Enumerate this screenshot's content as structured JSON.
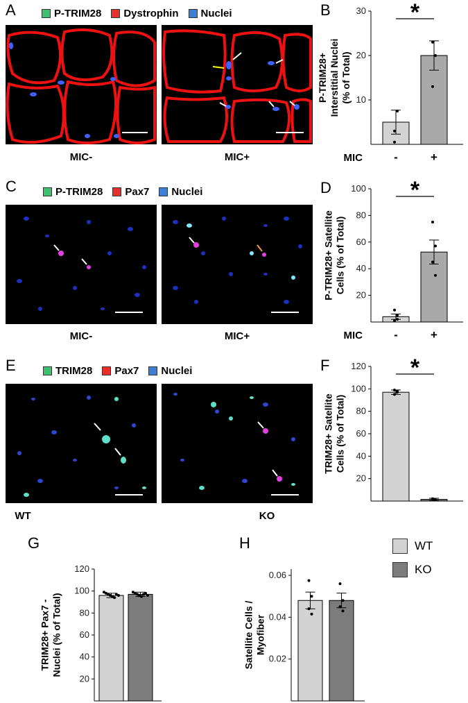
{
  "panels": {
    "A": {
      "letter": "A",
      "legend": [
        {
          "label": "P-TRIM28",
          "color": "#3ec16e"
        },
        {
          "label": "Dystrophin",
          "color": "#e8302a"
        },
        {
          "label": "Nuclei",
          "color": "#3d7fd6"
        }
      ],
      "captions": [
        "MIC-",
        "MIC+"
      ]
    },
    "C": {
      "letter": "C",
      "legend": [
        {
          "label": "P-TRIM28",
          "color": "#3ec16e"
        },
        {
          "label": "Pax7",
          "color": "#e8302a"
        },
        {
          "label": "Nuclei",
          "color": "#3d7fd6"
        }
      ],
      "captions": [
        "MIC-",
        "MIC+"
      ]
    },
    "E": {
      "letter": "E",
      "legend": [
        {
          "label": "TRIM28",
          "color": "#3ec16e"
        },
        {
          "label": "Pax7",
          "color": "#e8302a"
        },
        {
          "label": "Nuclei",
          "color": "#3d7fd6"
        }
      ],
      "captions": [
        "WT",
        "KO"
      ]
    }
  },
  "legend_gh": {
    "wt": "WT",
    "ko": "KO",
    "wt_color": "#d3d3d3",
    "ko_color": "#7c7c7c"
  },
  "chart_data": [
    {
      "panel": "B",
      "letter": "B",
      "type": "bar",
      "ylabel": "P-TRIM28+\nInterstitial Nuclei\n(% of Total)",
      "categories": [
        "-",
        "+"
      ],
      "xgroup_label": "MIC",
      "values": [
        5,
        20
      ],
      "errors": [
        2.7,
        3.3
      ],
      "points": [
        [
          3,
          7.5,
          0.5
        ],
        [
          23,
          20,
          13
        ]
      ],
      "yticks": [
        10,
        20,
        30
      ],
      "ylim": [
        0,
        30
      ],
      "significance": "*",
      "colors": [
        "#d3d3d3",
        "#a9a9a9"
      ]
    },
    {
      "panel": "D",
      "letter": "D",
      "type": "bar",
      "ylabel": "P-TRIM28+ Satellite\nCells (% of Total)",
      "categories": [
        "-",
        "+"
      ],
      "xgroup_label": "MIC",
      "values": [
        4,
        52.5
      ],
      "errors": [
        2,
        9
      ],
      "points": [
        [
          9,
          5,
          1,
          2
        ],
        [
          75,
          57,
          45,
          35
        ]
      ],
      "yticks": [
        20,
        40,
        60,
        80,
        100
      ],
      "ylim": [
        0,
        100
      ],
      "significance": "*",
      "colors": [
        "#d3d3d3",
        "#a9a9a9"
      ]
    },
    {
      "panel": "F",
      "letter": "F",
      "type": "bar",
      "ylabel": "TRIM28+ Satellite\nCells (% of Total)",
      "categories": [
        "",
        ""
      ],
      "xgroup_label": "",
      "values": [
        97,
        1.5
      ],
      "errors": [
        2,
        1
      ],
      "points": [
        [
          99,
          97,
          95,
          98
        ],
        [
          2,
          1,
          2,
          1
        ]
      ],
      "yticks": [
        20,
        40,
        60,
        80,
        100,
        120
      ],
      "ylim": [
        0,
        120
      ],
      "significance": "*",
      "colors": [
        "#d3d3d3",
        "#7c7c7c"
      ]
    },
    {
      "panel": "G",
      "letter": "G",
      "type": "bar",
      "ylabel": "TRIM28+ Pax7 -\nNuclei (% of Total)",
      "categories": [
        "",
        ""
      ],
      "xgroup_label": "",
      "values": [
        96,
        97
      ],
      "errors": [
        2,
        2
      ],
      "points": [
        [
          99,
          98,
          97,
          96,
          95,
          94,
          97,
          96
        ],
        [
          99,
          98,
          97,
          96,
          95,
          97,
          98,
          96
        ]
      ],
      "yticks": [
        20,
        40,
        60,
        80,
        100,
        120
      ],
      "ylim": [
        0,
        120
      ],
      "significance": "",
      "colors": [
        "#d3d3d3",
        "#7c7c7c"
      ]
    },
    {
      "panel": "H",
      "letter": "H",
      "type": "bar",
      "ylabel": "Satellite Cells /\nMyofiber",
      "categories": [
        "",
        ""
      ],
      "xgroup_label": "",
      "values": [
        0.048,
        0.048
      ],
      "errors": [
        0.004,
        0.0035
      ],
      "points": [
        [
          0.0575,
          0.05,
          0.044,
          0.0415
        ],
        [
          0.056,
          0.048,
          0.045,
          0.043
        ]
      ],
      "yticks": [
        0.02,
        0.04,
        0.06
      ],
      "ylim": [
        0,
        0.063
      ],
      "significance": "",
      "colors": [
        "#d3d3d3",
        "#7c7c7c"
      ]
    }
  ]
}
